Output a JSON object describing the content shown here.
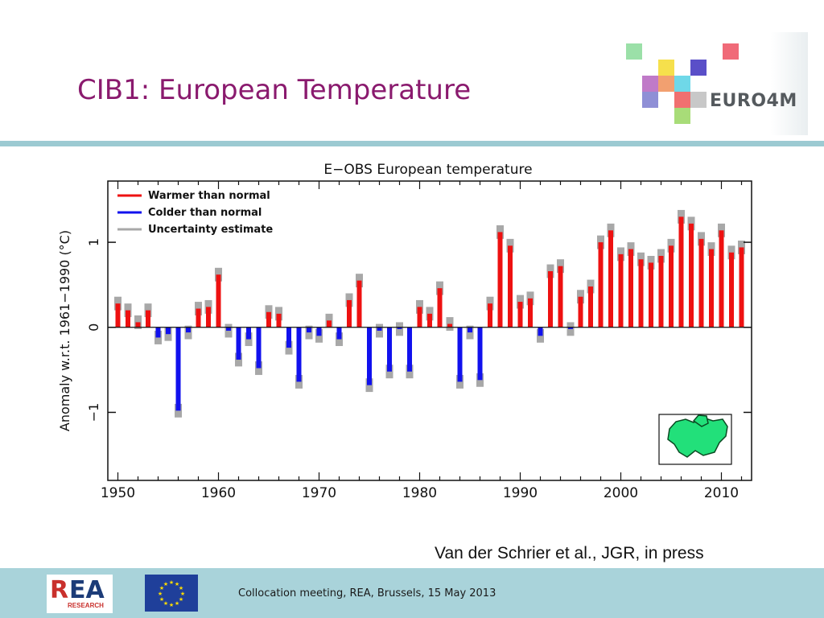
{
  "slide": {
    "title": "CIB1: European Temperature",
    "citation": "Van der Schrier et al., JGR, in press",
    "footer_text": "Collocation meeting, REA, Brussels, 15 May 2013"
  },
  "logos": {
    "euro4m": "EURO4M",
    "rea_mark": "REA",
    "rea_subtitle": "RESEARCH",
    "euro4m_square_colors": [
      "#9be0a8",
      "#f06a78",
      "#f6e04c",
      "#5a4fc8",
      "#c07ac8",
      "#f2a070",
      "#6fd8e8",
      "#8f8fd6",
      "#f07070",
      "#a8dc78"
    ]
  },
  "colors": {
    "title": "#8a1a6e",
    "warm": "#ee1111",
    "cold": "#1111ee",
    "uncertainty": "#a8a8a8",
    "rule": "#9ccad2",
    "footer": "#a9d3da"
  },
  "chart_data": {
    "type": "bar",
    "title": "E−OBS European temperature",
    "ylabel": "Anomaly w.r.t. 1961−1990 (°C)",
    "xlabel": "",
    "xlim": [
      1949,
      2013
    ],
    "ylim": [
      -1.8,
      1.72
    ],
    "x_ticks": [
      1950,
      1960,
      1970,
      1980,
      1990,
      2000,
      2010
    ],
    "y_ticks": [
      {
        "value": -1,
        "label": "−1"
      },
      {
        "value": 0,
        "label": "0"
      },
      {
        "value": 1,
        "label": "1"
      }
    ],
    "legend_position": "top-left",
    "legend": [
      {
        "label": "Warmer than normal",
        "color": "#ee1111"
      },
      {
        "label": "Colder than normal",
        "color": "#1111ee"
      },
      {
        "label": "Uncertainty estimate",
        "color": "#a8a8a8"
      }
    ],
    "inset": "map of Europe (E-OBS domain)",
    "years": [
      1950,
      1951,
      1952,
      1953,
      1954,
      1955,
      1956,
      1957,
      1958,
      1959,
      1960,
      1961,
      1962,
      1963,
      1964,
      1965,
      1966,
      1967,
      1968,
      1969,
      1970,
      1971,
      1972,
      1973,
      1974,
      1975,
      1976,
      1977,
      1978,
      1979,
      1980,
      1981,
      1982,
      1983,
      1984,
      1985,
      1986,
      1987,
      1988,
      1989,
      1990,
      1991,
      1992,
      1993,
      1994,
      1995,
      1996,
      1997,
      1998,
      1999,
      2000,
      2001,
      2002,
      2003,
      2004,
      2005,
      2006,
      2007,
      2008,
      2009,
      2010,
      2011,
      2012
    ],
    "values": [
      0.28,
      0.2,
      0.06,
      0.2,
      -0.12,
      -0.08,
      -0.98,
      -0.06,
      0.22,
      0.24,
      0.62,
      -0.04,
      -0.38,
      -0.14,
      -0.48,
      0.18,
      0.16,
      -0.24,
      -0.64,
      -0.06,
      -0.1,
      0.08,
      -0.14,
      0.32,
      0.55,
      -0.68,
      -0.04,
      -0.52,
      -0.02,
      -0.52,
      0.24,
      0.16,
      0.46,
      0.04,
      -0.64,
      -0.06,
      -0.62,
      0.28,
      1.12,
      0.96,
      0.3,
      0.34,
      -0.1,
      0.66,
      0.72,
      -0.02,
      0.36,
      0.48,
      1.0,
      1.14,
      0.86,
      0.92,
      0.8,
      0.76,
      0.84,
      0.96,
      1.3,
      1.22,
      1.04,
      0.92,
      1.14,
      0.88,
      0.94
    ],
    "uncertainty": 0.08
  }
}
